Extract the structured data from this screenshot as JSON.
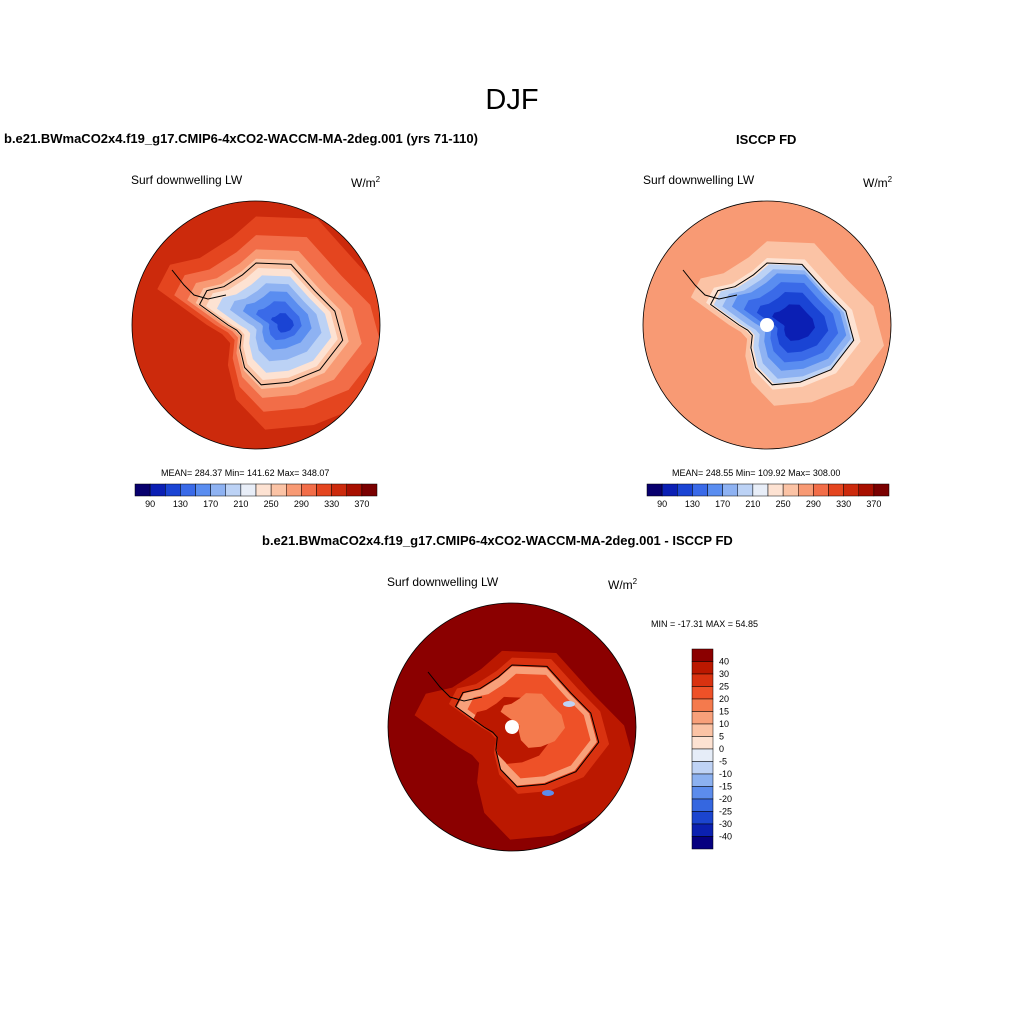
{
  "figure": {
    "season": "DJF",
    "panels": [
      {
        "title": "b.e21.BWmaCO2x4.f19_g17.CMIP6-4xCO2-WACCM-MA-2deg.001 (yrs 71-110)",
        "variable": "Surf downwelling LW",
        "units_base": "W/m",
        "units_exp": "2",
        "stats": "MEAN= 284.37  Min= 141.62  Max= 348.07"
      },
      {
        "title": "ISCCP FD",
        "variable": "Surf downwelling LW",
        "units_base": "W/m",
        "units_exp": "2",
        "stats": "MEAN= 248.55  Min= 109.92  Max= 308.00"
      },
      {
        "title": "b.e21.BWmaCO2x4.f19_g17.CMIP6-4xCO2-WACCM-MA-2deg.001 - ISCCP FD",
        "variable": "Surf downwelling LW",
        "units_base": "W/m",
        "units_exp": "2",
        "stats": "MIN = -17.31 MAX =  54.85"
      }
    ]
  },
  "chart_data": [
    {
      "type": "heatmap",
      "projection": "south-polar-stereographic",
      "title": "b.e21.BWmaCO2x4.f19_g17.CMIP6-4xCO2-WACCM-MA-2deg.001 (yrs 71-110)",
      "variable": "Surf downwelling LW",
      "units": "W/m^2",
      "mean": 284.37,
      "min": 141.62,
      "max": 348.07,
      "colorbar": {
        "levels": [
          90,
          110,
          130,
          150,
          170,
          190,
          210,
          230,
          250,
          270,
          290,
          310,
          330,
          350,
          370
        ],
        "tick_labels": [
          "90",
          "130",
          "170",
          "210",
          "250",
          "290",
          "330",
          "370"
        ],
        "colors": [
          "#08006e",
          "#0b1fb4",
          "#1a44d4",
          "#3a6ae8",
          "#5a8df0",
          "#8eb2f2",
          "#bcd2f5",
          "#e8eef8",
          "#fde2d2",
          "#fbc3a5",
          "#f89a74",
          "#f26d48",
          "#e4451f",
          "#cc2a0c",
          "#a80f00",
          "#7a0000"
        ]
      }
    },
    {
      "type": "heatmap",
      "projection": "south-polar-stereographic",
      "title": "ISCCP FD",
      "variable": "Surf downwelling LW",
      "units": "W/m^2",
      "mean": 248.55,
      "min": 109.92,
      "max": 308.0,
      "colorbar": {
        "levels": [
          90,
          110,
          130,
          150,
          170,
          190,
          210,
          230,
          250,
          270,
          290,
          310,
          330,
          350,
          370
        ],
        "tick_labels": [
          "90",
          "130",
          "170",
          "210",
          "250",
          "290",
          "330",
          "370"
        ],
        "colors": [
          "#08006e",
          "#0b1fb4",
          "#1a44d4",
          "#3a6ae8",
          "#5a8df0",
          "#8eb2f2",
          "#bcd2f5",
          "#e8eef8",
          "#fde2d2",
          "#fbc3a5",
          "#f89a74",
          "#f26d48",
          "#e4451f",
          "#cc2a0c",
          "#a80f00",
          "#7a0000"
        ]
      }
    },
    {
      "type": "heatmap",
      "projection": "south-polar-stereographic",
      "title": "b.e21.BWmaCO2x4.f19_g17.CMIP6-4xCO2-WACCM-MA-2deg.001 - ISCCP FD",
      "variable": "Surf downwelling LW",
      "units": "W/m^2",
      "min": -17.31,
      "max": 54.85,
      "colorbar": {
        "levels": [
          40,
          30,
          25,
          20,
          15,
          10,
          5,
          0,
          -5,
          -10,
          -15,
          -20,
          -25,
          -30,
          -40
        ],
        "tick_labels": [
          "40",
          "30",
          "25",
          "20",
          "15",
          "10",
          "5",
          "0",
          "-5",
          "-10",
          "-15",
          "-20",
          "-25",
          "-30",
          "-40"
        ],
        "colors": [
          "#8b0000",
          "#bb1800",
          "#d93210",
          "#ee5128",
          "#f47a4d",
          "#f8a07a",
          "#fbc3a5",
          "#fde2d2",
          "#e6edf8",
          "#bfd3f5",
          "#8cb1f0",
          "#5c8cec",
          "#3567e0",
          "#1b45cf",
          "#0b20b0",
          "#060080"
        ]
      }
    }
  ]
}
